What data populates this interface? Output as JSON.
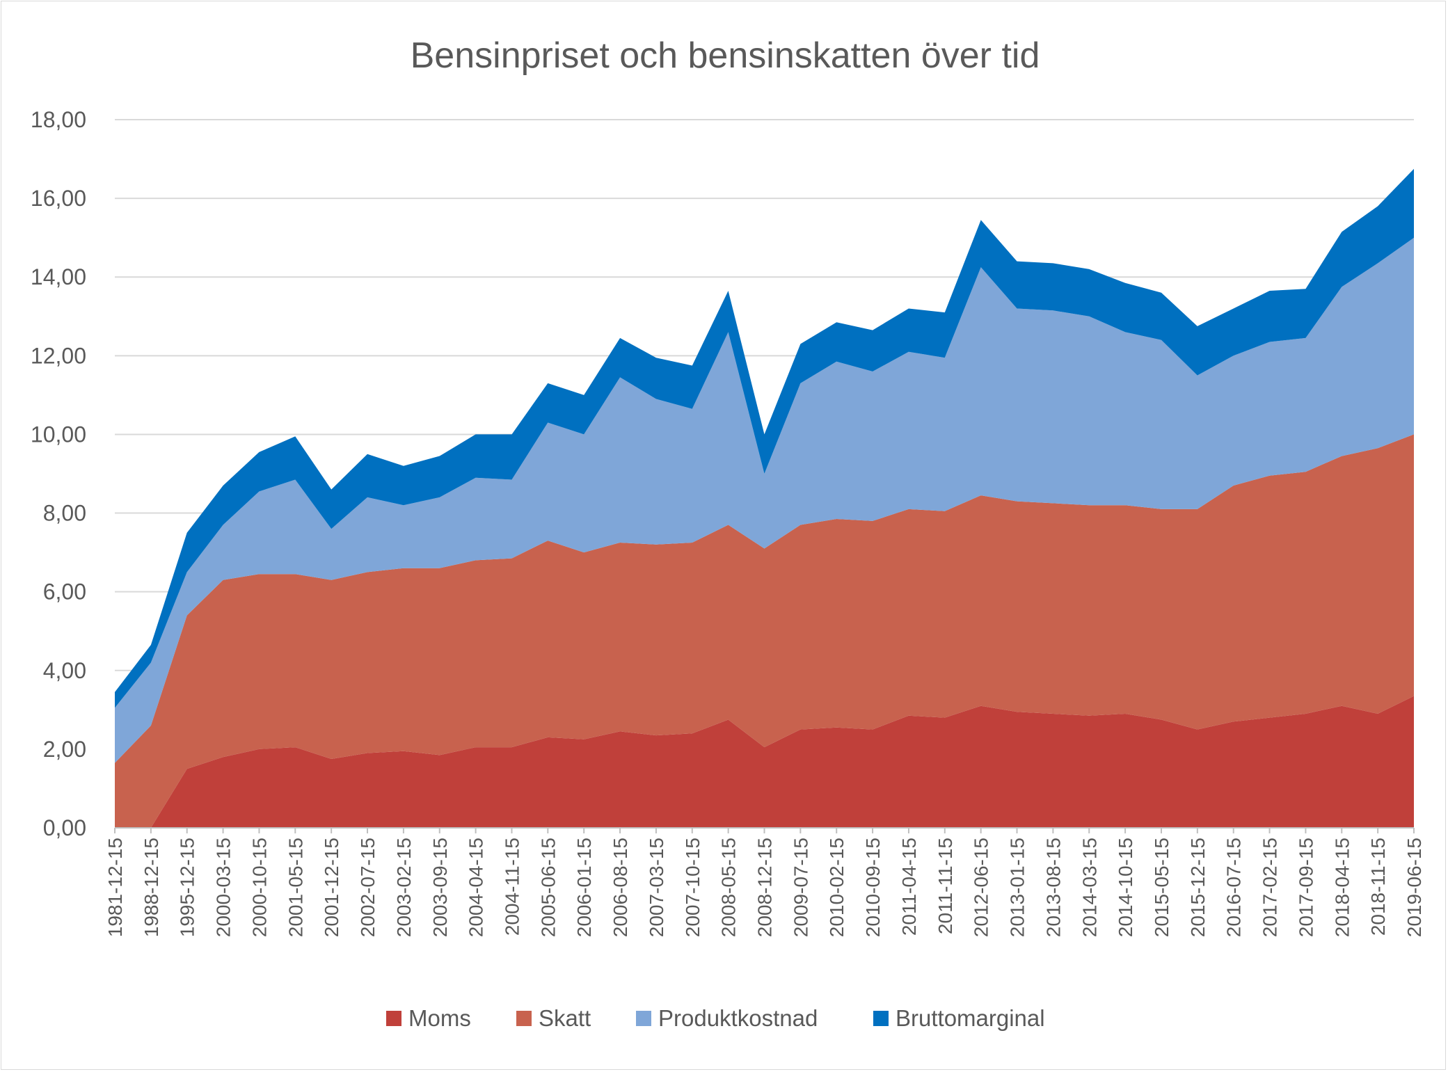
{
  "chart_data": {
    "type": "area",
    "stacked": true,
    "title": "Bensinpriset och bensinskatten över tid",
    "xlabel": "",
    "ylabel": "",
    "ylim": [
      0,
      18
    ],
    "ytick_labels": [
      "0,00",
      "2,00",
      "4,00",
      "6,00",
      "8,00",
      "10,00",
      "12,00",
      "14,00",
      "16,00",
      "18,00"
    ],
    "xtick_labels": [
      "1981-12-15",
      "1988-12-15",
      "1995-12-15",
      "2000-03-15",
      "2000-10-15",
      "2001-05-15",
      "2001-12-15",
      "2002-07-15",
      "2003-02-15",
      "2003-09-15",
      "2004-04-15",
      "2004-11-15",
      "2005-06-15",
      "2006-01-15",
      "2006-08-15",
      "2007-03-15",
      "2007-10-15",
      "2008-05-15",
      "2008-12-15",
      "2009-07-15",
      "2010-02-15",
      "2010-09-15",
      "2011-04-15",
      "2011-11-15",
      "2012-06-15",
      "2013-01-15",
      "2013-08-15",
      "2014-03-15",
      "2014-10-15",
      "2015-05-15",
      "2015-12-15",
      "2016-07-15",
      "2017-02-15",
      "2017-09-15",
      "2018-04-15",
      "2018-11-15",
      "2019-06-15"
    ],
    "grid": true,
    "legend_position": "bottom",
    "x_index": [
      0,
      1,
      2,
      3,
      4,
      5,
      6,
      7,
      8,
      9,
      10,
      11,
      12,
      13,
      14,
      15,
      16,
      17,
      18,
      19,
      20,
      21,
      22,
      23,
      24,
      25,
      26,
      27,
      28,
      29,
      30,
      31,
      32,
      33,
      34,
      35,
      36
    ],
    "series": [
      {
        "name": "Moms",
        "color": "#C0403A",
        "values": [
          0.0,
          0.0,
          1.5,
          1.8,
          2.0,
          2.05,
          1.75,
          1.9,
          1.95,
          1.85,
          2.05,
          2.05,
          2.3,
          2.25,
          2.45,
          2.35,
          2.4,
          2.75,
          2.05,
          2.5,
          2.55,
          2.5,
          2.85,
          2.8,
          3.1,
          2.95,
          2.9,
          2.85,
          2.9,
          2.75,
          2.5,
          2.7,
          2.8,
          2.9,
          3.1,
          2.9,
          3.35
        ]
      },
      {
        "name": "Skatt",
        "color": "#C8624E",
        "values": [
          1.65,
          2.6,
          3.9,
          4.5,
          4.45,
          4.4,
          4.55,
          4.6,
          4.65,
          4.75,
          4.75,
          4.8,
          5.0,
          4.75,
          4.8,
          4.85,
          4.85,
          4.95,
          5.05,
          5.2,
          5.3,
          5.3,
          5.25,
          5.25,
          5.35,
          5.35,
          5.35,
          5.35,
          5.3,
          5.35,
          5.6,
          6.0,
          6.15,
          6.15,
          6.35,
          6.75,
          6.65
        ]
      },
      {
        "name": "Produktkostnad",
        "color": "#7FA6D8",
        "values": [
          1.4,
          1.6,
          1.1,
          1.4,
          2.1,
          2.4,
          1.3,
          1.9,
          1.6,
          1.8,
          2.1,
          2.0,
          3.0,
          3.0,
          4.2,
          3.7,
          3.4,
          4.9,
          1.9,
          3.6,
          4.0,
          3.8,
          4.0,
          3.9,
          5.8,
          4.9,
          4.9,
          4.8,
          4.4,
          4.3,
          3.4,
          3.3,
          3.4,
          3.4,
          4.3,
          4.7,
          5.0
        ]
      },
      {
        "name": "Bruttomarginal",
        "color": "#0070C0",
        "values": [
          0.4,
          0.45,
          1.0,
          1.0,
          1.0,
          1.1,
          1.0,
          1.1,
          1.0,
          1.05,
          1.1,
          1.15,
          1.0,
          1.0,
          1.0,
          1.05,
          1.1,
          1.05,
          1.0,
          1.0,
          1.0,
          1.05,
          1.1,
          1.15,
          1.2,
          1.2,
          1.2,
          1.2,
          1.25,
          1.2,
          1.25,
          1.2,
          1.3,
          1.25,
          1.4,
          1.45,
          1.75
        ]
      }
    ]
  }
}
